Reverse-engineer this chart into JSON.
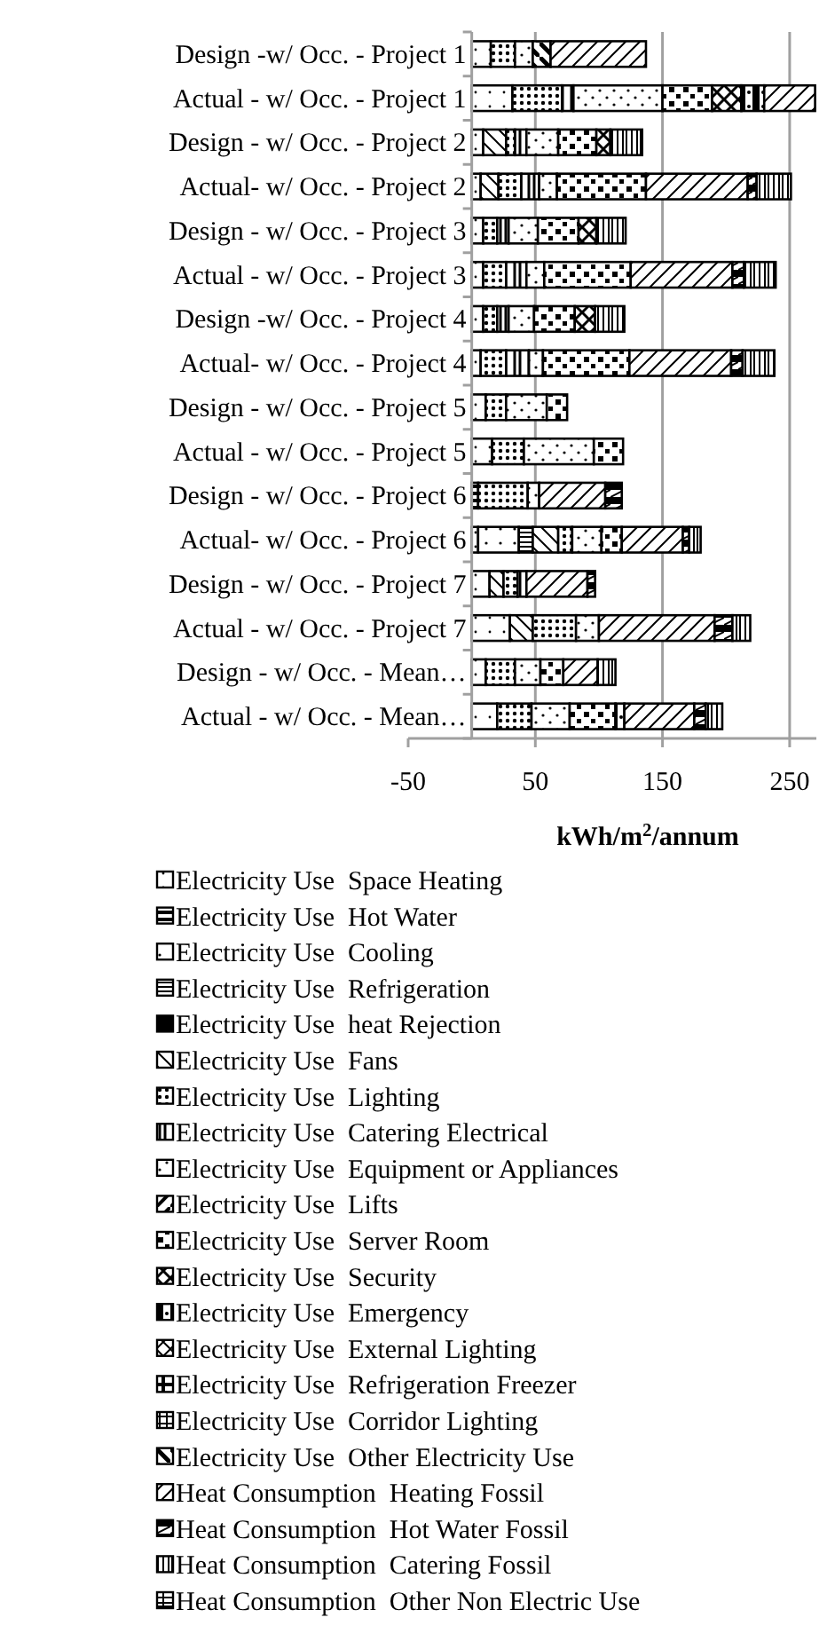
{
  "chart_data": {
    "type": "bar",
    "orientation": "horizontal",
    "stacked": true,
    "xlabel": "kWh/m$^{2}$/annum",
    "xlim": [
      -50,
      271
    ],
    "xticks": [
      -50,
      50,
      150,
      250
    ],
    "grid": "x",
    "legend": "bottom",
    "categories": [
      "Design -w/ Occ. - Project 1",
      "Actual - w/ Occ. - Project 1",
      "Design - w/ Occ. - Project 2",
      "Actual- w/ Occ. - Project 2",
      "Design - w/ Occ. - Project 3",
      "Actual - w/ Occ. - Project 3",
      "Design -w/ Occ. - Project 4",
      "Actual- w/ Occ. - Project 4",
      "Design - w/ Occ. - Project 5",
      "Actual - w/ Occ. - Project 5",
      "Design - w/ Occ. - Project 6",
      "Actual- w/ Occ. - Project 6",
      "Design - w/ Occ. - Project 7",
      "Actual - w/ Occ. - Project 7",
      "Design - w/ Occ. - Mean…",
      "Actual - w/ Occ. - Mean…"
    ],
    "series": [
      {
        "name": "Electricity Use  Space Heating",
        "color": "#000000",
        "values": [
          15,
          32,
          9,
          7,
          9,
          9,
          9,
          7,
          11,
          16,
          null,
          5,
          14,
          30,
          11,
          20
        ]
      },
      {
        "name": "Electricity Use  Hot Water",
        "color": "#000000",
        "values": [
          null,
          null,
          null,
          null,
          null,
          null,
          null,
          null,
          null,
          null,
          5,
          null,
          null,
          null,
          null,
          null
        ]
      },
      {
        "name": "Electricity Use  Cooling",
        "color": "#000000",
        "values": [
          null,
          null,
          null,
          null,
          null,
          null,
          null,
          null,
          null,
          null,
          null,
          32,
          null,
          null,
          null,
          null
        ]
      },
      {
        "name": "Electricity Use  Refrigeration",
        "color": "#000000",
        "values": [
          null,
          null,
          null,
          null,
          null,
          null,
          null,
          null,
          null,
          null,
          null,
          11,
          null,
          null,
          null,
          null
        ]
      },
      {
        "name": "Electricity Use  heat Rejection",
        "color": "#000000",
        "values": [
          null,
          null,
          null,
          null,
          null,
          null,
          null,
          null,
          null,
          null,
          null,
          null,
          null,
          null,
          null,
          null
        ]
      },
      {
        "name": "Electricity Use  Fans",
        "color": "#000000",
        "values": [
          null,
          null,
          18,
          14,
          null,
          null,
          null,
          null,
          null,
          null,
          null,
          20,
          11,
          18,
          null,
          null
        ]
      },
      {
        "name": "Electricity Use  Lighting",
        "color": "#000000",
        "values": [
          19,
          39,
          7,
          18,
          11,
          18,
          11,
          20,
          16,
          25,
          39,
          11,
          11,
          34,
          23,
          27
        ]
      },
      {
        "name": "Electricity Use  Catering Electrical",
        "color": "#000000",
        "values": [
          null,
          9,
          9,
          14,
          9,
          16,
          9,
          18,
          null,
          null,
          null,
          null,
          7,
          null,
          null,
          null
        ]
      },
      {
        "name": "Electricity Use  Equipment or Appliances",
        "color": "#000000",
        "values": [
          14,
          70,
          25,
          14,
          23,
          14,
          20,
          11,
          32,
          55,
          9,
          23,
          null,
          18,
          20,
          30
        ]
      },
      {
        "name": "Electricity Use  Lifts",
        "color": "#000000",
        "values": [
          null,
          null,
          null,
          null,
          null,
          null,
          null,
          null,
          null,
          null,
          null,
          null,
          null,
          null,
          null,
          null
        ]
      },
      {
        "name": "Electricity Use  Server Room",
        "color": "#000000",
        "values": [
          null,
          39,
          30,
          70,
          32,
          68,
          32,
          68,
          16,
          23,
          null,
          16,
          null,
          null,
          18,
          36
        ]
      },
      {
        "name": "Electricity Use  Security",
        "color": "#000000",
        "values": [
          null,
          23,
          11,
          null,
          14,
          null,
          16,
          null,
          null,
          null,
          null,
          null,
          null,
          null,
          null,
          null
        ]
      },
      {
        "name": "Electricity Use  Emergency",
        "color": "#000000",
        "values": [
          null,
          18,
          null,
          null,
          null,
          null,
          null,
          null,
          null,
          null,
          null,
          null,
          null,
          null,
          null,
          7
        ]
      },
      {
        "name": "Electricity Use  External Lighting",
        "color": "#000000",
        "values": [
          null,
          null,
          null,
          null,
          null,
          null,
          null,
          null,
          null,
          null,
          null,
          null,
          null,
          null,
          null,
          null
        ]
      },
      {
        "name": "Electricity Use  Refrigeration Freezer",
        "color": "#000000",
        "values": [
          null,
          null,
          null,
          null,
          null,
          null,
          null,
          null,
          null,
          null,
          null,
          null,
          null,
          null,
          null,
          null
        ]
      },
      {
        "name": "Electricity Use  Corridor Lighting",
        "color": "#000000",
        "values": [
          null,
          null,
          null,
          null,
          null,
          null,
          null,
          null,
          null,
          null,
          null,
          null,
          null,
          null,
          null,
          null
        ]
      },
      {
        "name": "Electricity Use  Other Electricity Use",
        "color": "#000000",
        "values": [
          14,
          null,
          null,
          null,
          null,
          null,
          null,
          null,
          null,
          null,
          null,
          null,
          null,
          null,
          null,
          null
        ]
      },
      {
        "name": "Heat Consumption  Heating Fossil",
        "color": "#000000",
        "values": [
          75,
          40,
          null,
          80,
          null,
          80,
          null,
          80,
          null,
          null,
          52,
          48,
          48,
          91,
          27,
          55
        ]
      },
      {
        "name": "Heat Consumption  Hot Water Fossil",
        "color": "#000000",
        "values": [
          null,
          null,
          null,
          7,
          null,
          9,
          null,
          9,
          null,
          null,
          13,
          5,
          6,
          14,
          null,
          9
        ]
      },
      {
        "name": "Heat Consumption  Catering Fossil",
        "color": "#000000",
        "values": [
          null,
          null,
          25,
          27,
          23,
          25,
          23,
          25,
          null,
          null,
          null,
          9,
          null,
          14,
          14,
          13
        ]
      },
      {
        "name": "Heat Consumption  Other Non Electric Use",
        "color": "#000000",
        "values": [
          null,
          null,
          null,
          null,
          null,
          null,
          null,
          null,
          null,
          null,
          null,
          null,
          null,
          null,
          null,
          null
        ]
      }
    ]
  }
}
